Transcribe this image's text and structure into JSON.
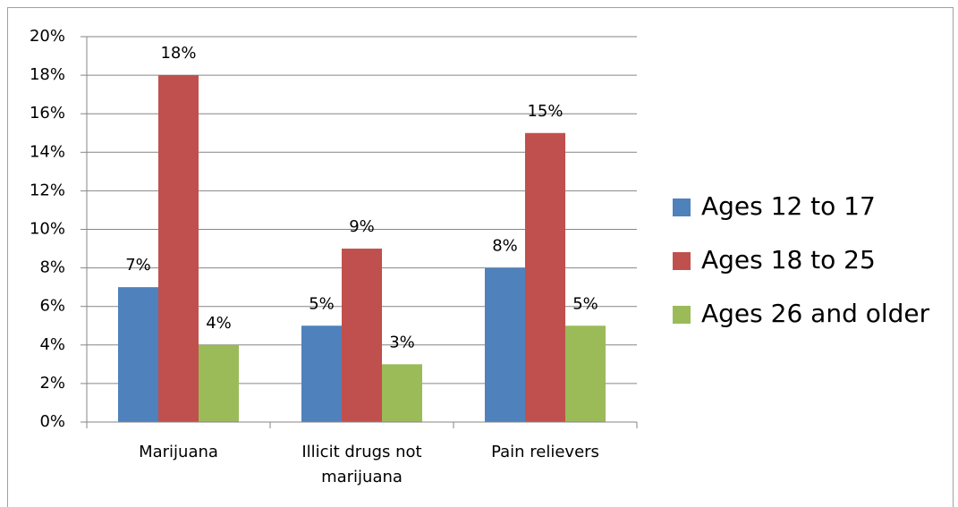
{
  "chart_data": {
    "type": "bar",
    "categories": [
      "Marijuana",
      "Illicit drugs not marijuana",
      "Pain relievers"
    ],
    "series": [
      {
        "name": "Ages 12 to 17",
        "color": "#4f81bd",
        "values": [
          7,
          5,
          8
        ],
        "value_labels": [
          "7%",
          "5%",
          "8%"
        ]
      },
      {
        "name": "Ages 18 to 25",
        "color": "#c0504d",
        "values": [
          18,
          9,
          15
        ],
        "value_labels": [
          "18%",
          "9%",
          "15%"
        ]
      },
      {
        "name": "Ages 26 and older",
        "color": "#9bbb59",
        "values": [
          4,
          3,
          5
        ],
        "value_labels": [
          "4%",
          "3%",
          "5%"
        ]
      }
    ],
    "ylim": [
      0,
      20
    ],
    "yticks": [
      {
        "value": 0,
        "label": "0%"
      },
      {
        "value": 2,
        "label": "2%"
      },
      {
        "value": 4,
        "label": "4%"
      },
      {
        "value": 6,
        "label": "6%"
      },
      {
        "value": 8,
        "label": "8%"
      },
      {
        "value": 10,
        "label": "10%"
      },
      {
        "value": 12,
        "label": "12%"
      },
      {
        "value": 14,
        "label": "14%"
      },
      {
        "value": 16,
        "label": "16%"
      },
      {
        "value": 18,
        "label": "18%"
      },
      {
        "value": 20,
        "label": "20%"
      }
    ],
    "grid": true,
    "legend": "right"
  }
}
